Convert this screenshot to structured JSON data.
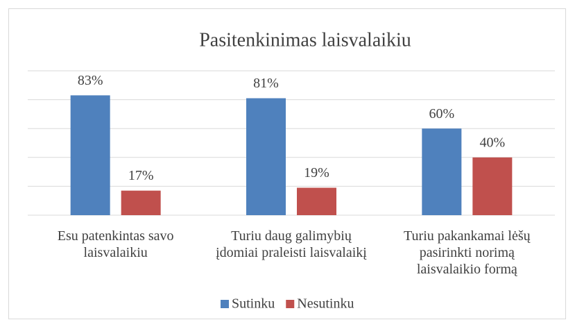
{
  "chart_data": {
    "type": "bar",
    "title": "Pasitenkinimas laisvalaikiu",
    "categories": [
      "Esu patenkintas savo laisvalaikiu",
      "Turiu daug galimybių įdomiai praleisti laisvalaikį",
      "Turiu pakankamai lėšų pasirinkti norimą laisvalaikio formą"
    ],
    "series": [
      {
        "name": "Sutinku",
        "color": "#4f81bd",
        "values": [
          83,
          81,
          60
        ],
        "value_labels": [
          "83%",
          "81%",
          "60%"
        ]
      },
      {
        "name": "Nesutinku",
        "color": "#c0504d",
        "values": [
          17,
          19,
          40
        ],
        "value_labels": [
          "17%",
          "19%",
          "40%"
        ]
      }
    ],
    "ylim": [
      0,
      100
    ],
    "yticks": [
      0,
      20,
      40,
      60,
      80,
      100
    ],
    "grid": true,
    "legend": "bottom"
  }
}
